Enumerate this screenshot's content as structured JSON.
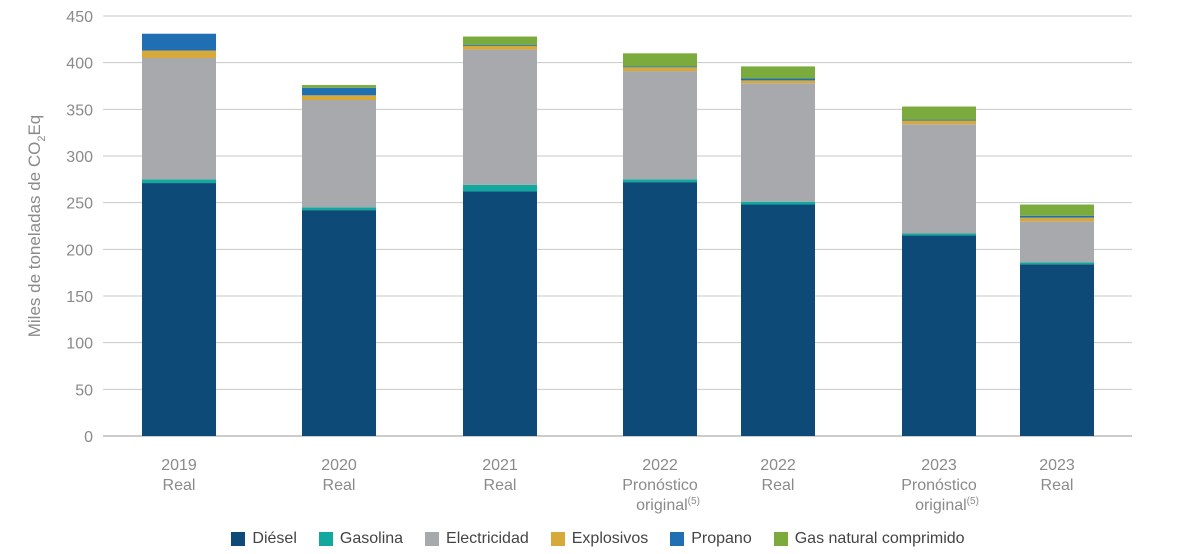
{
  "chart_data": {
    "type": "bar",
    "stacked": true,
    "ylabel_main": "Miles de toneladas de CO",
    "ylabel_sub": "2",
    "ylabel_end": "Eq",
    "ylim": [
      0,
      450
    ],
    "yticks": [
      0,
      50,
      100,
      150,
      200,
      250,
      300,
      350,
      400,
      450
    ],
    "grid": true,
    "legend_position": "bottom",
    "categories": [
      {
        "line1": "2019",
        "line2": "Real",
        "line3": "",
        "sup": ""
      },
      {
        "line1": "2020",
        "line2": "Real",
        "line3": "",
        "sup": ""
      },
      {
        "line1": "2021",
        "line2": "Real",
        "line3": "",
        "sup": ""
      },
      {
        "line1": "2022",
        "line2": "Pronóstico",
        "line3": "original",
        "sup": "(5)"
      },
      {
        "line1": "2022",
        "line2": "Real",
        "line3": "",
        "sup": ""
      },
      {
        "line1": "2023",
        "line2": "Pronóstico",
        "line3": "original",
        "sup": "(5)"
      },
      {
        "line1": "2023",
        "line2": "Real",
        "line3": "",
        "sup": ""
      }
    ],
    "series": [
      {
        "name": "Diésel",
        "color": "#0d4a78",
        "values": [
          271,
          242,
          262,
          272,
          248,
          215,
          184
        ]
      },
      {
        "name": "Gasolina",
        "color": "#12a89d",
        "values": [
          4,
          3,
          7,
          3,
          3,
          2,
          2
        ]
      },
      {
        "name": "Electricidad",
        "color": "#a7a9ac",
        "values": [
          130,
          115,
          145,
          116,
          127,
          117,
          44
        ]
      },
      {
        "name": "Explosivos",
        "color": "#d6a93a",
        "values": [
          8,
          5,
          4,
          4,
          3,
          4,
          4
        ]
      },
      {
        "name": "Propano",
        "color": "#1f6fb2",
        "values": [
          18,
          8,
          1,
          1,
          2,
          1,
          2
        ]
      },
      {
        "name": "Gas natural comprimido",
        "color": "#7aab3c",
        "values": [
          0,
          3,
          9,
          14,
          13,
          14,
          12
        ]
      }
    ]
  }
}
